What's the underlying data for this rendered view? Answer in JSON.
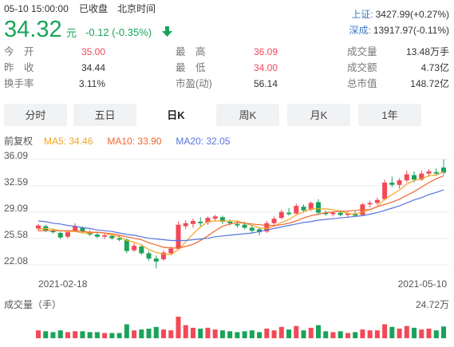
{
  "header": {
    "datetime": "05-10 15:00:00",
    "status": "已收盘",
    "timezone": "北京时间"
  },
  "quote": {
    "price": "34.32",
    "unit": "元",
    "change": "-0.12 (-0.35%)"
  },
  "indices": [
    {
      "name": "上证:",
      "value": "3427.99(+0.27%)"
    },
    {
      "name": "深成:",
      "value": "13917.97(-0.11%)"
    }
  ],
  "stats": [
    [
      {
        "label": "今　开",
        "value": "35.00",
        "color": "#f24957"
      },
      {
        "label": "最　高",
        "value": "36.09",
        "color": "#f24957"
      },
      {
        "label": "成交量",
        "value": "13.48万手",
        "color": "#333333"
      }
    ],
    [
      {
        "label": "昨　收",
        "value": "34.44",
        "color": "#333333"
      },
      {
        "label": "最　低",
        "value": "34.00",
        "color": "#f24957"
      },
      {
        "label": "成交额",
        "value": "4.73亿",
        "color": "#333333"
      }
    ],
    [
      {
        "label": "换手率",
        "value": "3.11%",
        "color": "#333333"
      },
      {
        "label": "市盈(动)",
        "value": "56.14",
        "color": "#333333"
      },
      {
        "label": "总市值",
        "value": "148.72亿",
        "color": "#333333"
      }
    ]
  ],
  "tabs": [
    "分时",
    "五日",
    "日K",
    "周K",
    "月K",
    "1年"
  ],
  "selected_tab": 2,
  "chart_data": {
    "type": "candlestick",
    "adjust_label": "前复权",
    "up_color": "#f24957",
    "down_color": "#1aa35a",
    "categories": [
      "2021-02-18",
      null,
      null,
      null,
      null,
      null,
      null,
      null,
      null,
      null,
      null,
      null,
      null,
      null,
      null,
      null,
      null,
      null,
      null,
      null,
      null,
      null,
      null,
      null,
      null,
      null,
      null,
      null,
      null,
      null,
      null,
      null,
      null,
      null,
      null,
      null,
      null,
      null,
      null,
      null,
      null,
      null,
      null,
      null,
      null,
      null,
      null,
      null,
      null,
      null,
      null,
      null,
      null,
      null,
      null,
      "2021-05-10"
    ],
    "open": [
      26.9,
      27.2,
      26.6,
      26.3,
      25.8,
      26.5,
      27.0,
      26.4,
      26.1,
      25.8,
      25.9,
      25.6,
      25.4,
      24.0,
      24.5,
      23.6,
      22.9,
      22.8,
      23.6,
      24.2,
      27.2,
      27.5,
      27.8,
      27.7,
      28.2,
      28.4,
      27.8,
      27.5,
      27.4,
      27.0,
      26.8,
      26.5,
      27.6,
      28.3,
      29.0,
      28.9,
      29.8,
      29.4,
      30.4,
      29.0,
      28.8,
      29.0,
      28.7,
      28.9,
      28.7,
      30.1,
      30.3,
      30.8,
      33.0,
      32.7,
      33.3,
      34.0,
      33.4,
      34.2,
      34.4,
      35.0
    ],
    "high": [
      27.5,
      27.4,
      26.9,
      26.5,
      26.6,
      27.6,
      27.2,
      26.7,
      26.4,
      26.2,
      26.1,
      26.0,
      25.6,
      25.0,
      24.8,
      23.9,
      23.3,
      24.0,
      24.5,
      27.8,
      28.0,
      28.2,
      28.4,
      28.5,
      28.7,
      28.6,
      28.1,
      27.9,
      27.8,
      27.4,
      27.0,
      27.9,
      28.5,
      29.4,
      29.6,
      30.2,
      30.1,
      30.5,
      30.8,
      29.3,
      29.2,
      29.3,
      29.1,
      29.2,
      30.3,
      30.6,
      31.0,
      33.4,
      33.8,
      33.6,
      34.6,
      34.5,
      34.6,
      34.8,
      34.9,
      36.09
    ],
    "low": [
      26.5,
      26.4,
      26.2,
      25.5,
      25.6,
      26.4,
      26.3,
      25.9,
      25.6,
      25.5,
      25.4,
      25.2,
      23.6,
      23.8,
      23.4,
      22.6,
      21.6,
      22.6,
      23.4,
      24.0,
      26.8,
      27.0,
      27.2,
      27.4,
      27.9,
      27.5,
      27.3,
      27.0,
      26.8,
      26.3,
      26.0,
      26.3,
      27.3,
      28.1,
      28.6,
      28.7,
      29.0,
      29.2,
      28.7,
      28.6,
      28.5,
      28.5,
      28.4,
      28.5,
      28.6,
      29.7,
      30.0,
      30.6,
      32.4,
      32.2,
      33.0,
      33.0,
      33.2,
      33.8,
      33.9,
      34.0
    ],
    "close": [
      27.3,
      26.6,
      26.4,
      25.7,
      26.4,
      27.2,
      26.5,
      26.1,
      25.8,
      26.0,
      25.6,
      25.4,
      23.9,
      24.6,
      23.6,
      22.9,
      22.5,
      23.7,
      24.2,
      27.4,
      27.6,
      27.9,
      27.6,
      28.3,
      28.5,
      27.8,
      27.6,
      27.3,
      27.0,
      26.6,
      26.4,
      27.6,
      28.2,
      29.1,
      28.8,
      29.9,
      29.3,
      30.3,
      29.0,
      28.8,
      29.0,
      28.7,
      28.9,
      28.6,
      30.1,
      30.3,
      30.7,
      33.0,
      32.7,
      33.3,
      34.1,
      33.4,
      34.2,
      34.5,
      34.2,
      34.32
    ],
    "series": [
      {
        "name": "MA5: 34.46",
        "color": "#f5a623",
        "values": [
          26.8,
          26.9,
          26.8,
          26.6,
          26.5,
          26.5,
          26.3,
          26.3,
          26.4,
          26.3,
          26.0,
          25.8,
          25.3,
          25.1,
          24.7,
          24.1,
          23.7,
          23.5,
          23.4,
          24.1,
          25.1,
          26.2,
          27.1,
          27.8,
          27.9,
          27.9,
          27.9,
          27.9,
          27.6,
          27.3,
          27.0,
          26.9,
          27.2,
          27.7,
          28.1,
          28.7,
          29.1,
          29.5,
          29.5,
          29.5,
          29.4,
          29.2,
          28.9,
          28.8,
          29.1,
          29.4,
          29.8,
          30.8,
          31.4,
          32.0,
          32.8,
          33.3,
          33.5,
          33.9,
          34.0,
          34.46
        ]
      },
      {
        "name": "MA10: 33.90",
        "color": "#f2652f",
        "values": [
          26.6,
          26.6,
          26.6,
          26.6,
          26.6,
          26.6,
          26.5,
          26.4,
          26.4,
          26.3,
          26.2,
          26.0,
          25.8,
          25.6,
          25.4,
          25.0,
          24.7,
          24.4,
          24.3,
          24.3,
          24.5,
          24.8,
          25.3,
          25.9,
          26.6,
          27.2,
          27.5,
          27.7,
          27.6,
          27.5,
          27.4,
          27.3,
          27.3,
          27.4,
          27.6,
          27.9,
          28.3,
          28.6,
          28.8,
          29.0,
          29.1,
          29.2,
          29.2,
          29.3,
          29.4,
          29.4,
          29.8,
          30.1,
          30.4,
          30.8,
          31.3,
          31.8,
          32.4,
          33.0,
          33.5,
          33.9
        ]
      },
      {
        "name": "MA20: 32.05",
        "color": "#5a74dc",
        "values": [
          27.9,
          27.8,
          27.6,
          27.5,
          27.3,
          27.2,
          27.0,
          26.9,
          26.7,
          26.6,
          26.5,
          26.3,
          26.1,
          26.0,
          25.8,
          25.6,
          25.5,
          25.4,
          25.3,
          25.3,
          25.3,
          25.4,
          25.5,
          25.6,
          25.8,
          25.9,
          26.0,
          26.1,
          26.2,
          26.3,
          26.5,
          26.7,
          26.9,
          27.1,
          27.3,
          27.5,
          27.7,
          27.8,
          28.0,
          28.1,
          28.2,
          28.3,
          28.4,
          28.5,
          28.6,
          28.8,
          29.0,
          29.3,
          29.6,
          29.9,
          30.3,
          30.7,
          31.0,
          31.4,
          31.7,
          32.05
        ]
      }
    ],
    "ylim": [
      21.0,
      36.6
    ],
    "yticks": [
      36.09,
      32.59,
      29.09,
      25.58,
      22.08
    ],
    "grid": true,
    "volume_title": "成交量（手）",
    "volume_max_label": "24.72万",
    "volume_ylim": [
      0,
      24.72
    ],
    "volume": [
      9,
      8,
      7,
      9,
      7,
      8,
      8,
      7,
      7,
      6,
      6,
      6,
      16,
      9,
      10,
      11,
      13,
      10,
      9,
      24.72,
      15,
      12,
      11,
      12,
      10,
      9,
      8,
      7,
      8,
      9,
      7,
      11,
      9,
      13,
      10,
      14,
      9,
      12,
      15,
      8,
      7,
      8,
      6,
      7,
      10,
      9,
      9,
      16,
      13,
      11,
      14,
      12,
      10,
      11,
      9,
      13.48
    ]
  }
}
